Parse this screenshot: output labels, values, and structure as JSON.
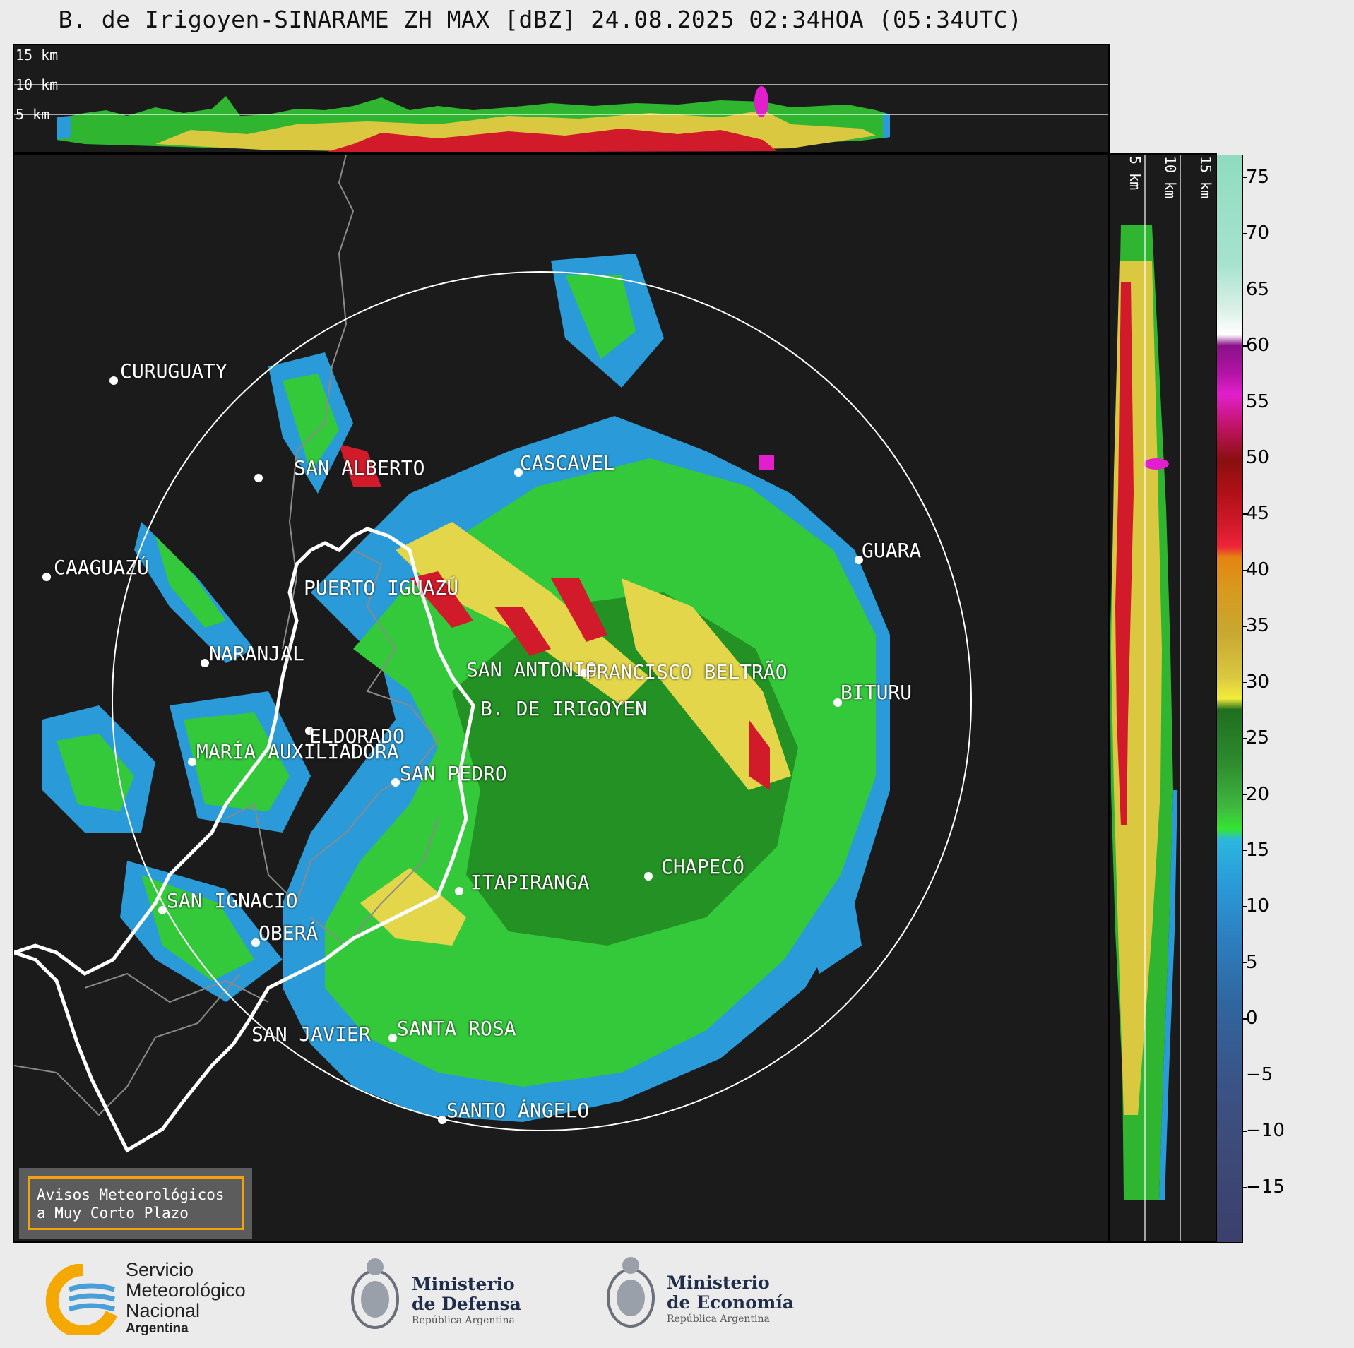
{
  "title": "B. de Irigoyen-SINARAME ZH MAX [dBZ] 24.08.2025 02:34HOA (05:34UTC)",
  "top_panel": {
    "height_labels": [
      "15 km",
      "10 km",
      "5 km"
    ]
  },
  "side_panel": {
    "height_labels": [
      "5 km",
      "10 km",
      "15 km"
    ]
  },
  "colorbar": {
    "unit": "dBZ",
    "ticks": [
      "75",
      "70",
      "65",
      "60",
      "55",
      "50",
      "45",
      "40",
      "35",
      "30",
      "25",
      "20",
      "15",
      "10",
      "5",
      "0",
      "−5",
      "−10",
      "−15"
    ],
    "range": [
      -20,
      77
    ]
  },
  "cities": [
    {
      "name": "CURUGUATY"
    },
    {
      "name": "SAN ALBERTO"
    },
    {
      "name": "CASCAVEL"
    },
    {
      "name": "CAAGUAZÚ"
    },
    {
      "name": "GUARA"
    },
    {
      "name": "PUERTO IGUAZÚ"
    },
    {
      "name": "NARANJAL"
    },
    {
      "name": "SAN ANTONIO"
    },
    {
      "name": "FRANCISCO BELTRÃO"
    },
    {
      "name": "BITURU"
    },
    {
      "name": "B. DE IRIGOYEN"
    },
    {
      "name": "ELDORADO"
    },
    {
      "name": "MARÍA AUXILIADORA"
    },
    {
      "name": "SAN PEDRO"
    },
    {
      "name": "CHAPECÓ"
    },
    {
      "name": "ITAPIRANGA"
    },
    {
      "name": "SAN IGNACIO"
    },
    {
      "name": "OBERÁ"
    },
    {
      "name": "SAN JAVIER"
    },
    {
      "name": "SANTA ROSA"
    },
    {
      "name": "SANTO ÁNGELO"
    }
  ],
  "notice": {
    "line1": "Avisos Meteorológicos",
    "line2": "a Muy Corto Plazo"
  },
  "logos": {
    "smn": {
      "line1": "Servicio",
      "line2": "Meteorológico",
      "line3": "Nacional",
      "line4": "Argentina"
    },
    "defensa": {
      "line1": "Ministerio",
      "line2": "de Defensa",
      "line3": "República Argentina"
    },
    "economia": {
      "line1": "Ministerio",
      "line2": "de Economía",
      "line3": "República Argentina"
    }
  },
  "colors": {
    "background": "#1b1b1b",
    "border_white": "#ffffff",
    "province_lines": "#8a8a8a",
    "notice_border": "#f2a20f",
    "smn_orange": "#f5a800",
    "smn_blue": "#4a9fd8"
  }
}
